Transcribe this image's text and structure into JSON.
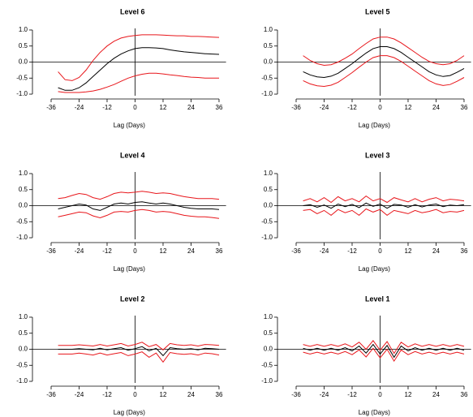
{
  "chart_data": [
    {
      "type": "line",
      "title": "Level 6",
      "xlabel": "Lag (Days)",
      "x": [
        -33,
        -30,
        -27,
        -24,
        -21,
        -18,
        -15,
        -12,
        -9,
        -6,
        -3,
        0,
        3,
        6,
        9,
        12,
        15,
        18,
        21,
        24,
        27,
        30,
        33,
        36
      ],
      "xlim": [
        -44,
        39
      ],
      "xticks": [
        -36,
        -24,
        -12,
        0,
        12,
        24,
        36
      ],
      "ylim": [
        -1.05,
        1.05
      ],
      "yticks": [
        {
          "value": -1,
          "label": "-1.0"
        },
        -0.5,
        {
          "value": 0,
          "label": "0.0"
        },
        0.5,
        {
          "value": 1,
          "label": "1.0"
        }
      ],
      "series": [
        {
          "color": "#000000",
          "values": [
            -0.8,
            -0.88,
            -0.88,
            -0.8,
            -0.65,
            -0.45,
            -0.25,
            -0.05,
            0.12,
            0.25,
            0.35,
            0.42,
            0.45,
            0.45,
            0.44,
            0.42,
            0.38,
            0.35,
            0.32,
            0.3,
            0.28,
            0.26,
            0.25,
            0.24
          ]
        },
        {
          "color": "#e8161b",
          "values": [
            -0.3,
            -0.55,
            -0.58,
            -0.48,
            -0.25,
            0.05,
            0.3,
            0.5,
            0.65,
            0.75,
            0.8,
            0.83,
            0.85,
            0.85,
            0.85,
            0.84,
            0.83,
            0.82,
            0.82,
            0.8,
            0.8,
            0.79,
            0.78,
            0.77
          ]
        },
        {
          "color": "#e8161b",
          "values": [
            -0.92,
            -0.95,
            -0.95,
            -0.95,
            -0.93,
            -0.9,
            -0.85,
            -0.78,
            -0.7,
            -0.6,
            -0.5,
            -0.43,
            -0.38,
            -0.35,
            -0.35,
            -0.37,
            -0.4,
            -0.42,
            -0.45,
            -0.47,
            -0.48,
            -0.5,
            -0.5,
            -0.5
          ]
        }
      ]
    },
    {
      "type": "line",
      "title": "Level 5",
      "xlabel": "Lag (Days)",
      "x": [
        -33,
        -30,
        -27,
        -24,
        -21,
        -18,
        -15,
        -12,
        -9,
        -6,
        -3,
        0,
        3,
        6,
        9,
        12,
        15,
        18,
        21,
        24,
        27,
        30,
        33,
        36
      ],
      "xlim": [
        -44,
        39
      ],
      "xticks": [
        -36,
        -24,
        -12,
        0,
        12,
        24,
        36
      ],
      "ylim": [
        -1.05,
        1.05
      ],
      "yticks": [
        {
          "value": -1,
          "label": "-1.0"
        },
        -0.5,
        {
          "value": 0,
          "label": "0.0"
        },
        0.5,
        {
          "value": 1,
          "label": "1.0"
        }
      ],
      "series": [
        {
          "color": "#000000",
          "values": [
            -0.3,
            -0.4,
            -0.46,
            -0.48,
            -0.44,
            -0.35,
            -0.2,
            -0.05,
            0.12,
            0.28,
            0.42,
            0.48,
            0.48,
            0.42,
            0.3,
            0.15,
            0,
            -0.15,
            -0.3,
            -0.4,
            -0.45,
            -0.42,
            -0.32,
            -0.2
          ]
        },
        {
          "color": "#e8161b",
          "values": [
            0.2,
            0.05,
            -0.05,
            -0.1,
            -0.08,
            0,
            0.12,
            0.25,
            0.42,
            0.58,
            0.72,
            0.78,
            0.78,
            0.72,
            0.6,
            0.45,
            0.3,
            0.15,
            0.02,
            -0.05,
            -0.08,
            -0.05,
            0.05,
            0.2
          ]
        },
        {
          "color": "#e8161b",
          "values": [
            -0.58,
            -0.68,
            -0.74,
            -0.76,
            -0.72,
            -0.63,
            -0.48,
            -0.33,
            -0.16,
            0,
            0.14,
            0.2,
            0.2,
            0.14,
            0.02,
            -0.13,
            -0.28,
            -0.43,
            -0.58,
            -0.68,
            -0.73,
            -0.7,
            -0.6,
            -0.48
          ]
        }
      ]
    },
    {
      "type": "line",
      "title": "Level 4",
      "xlabel": "Lag (Days)",
      "x": [
        -33,
        -30,
        -27,
        -24,
        -21,
        -18,
        -15,
        -12,
        -9,
        -6,
        -3,
        0,
        3,
        6,
        9,
        12,
        15,
        18,
        21,
        24,
        27,
        30,
        33,
        36
      ],
      "xlim": [
        -44,
        39
      ],
      "xticks": [
        -36,
        -24,
        -12,
        0,
        12,
        24,
        36
      ],
      "ylim": [
        -1.05,
        1.05
      ],
      "yticks": [
        {
          "value": -1,
          "label": "-1.0"
        },
        -0.5,
        {
          "value": 0,
          "label": "0.0"
        },
        0.5,
        {
          "value": 1,
          "label": "1.0"
        }
      ],
      "series": [
        {
          "color": "#000000",
          "values": [
            -0.1,
            -0.05,
            0,
            0.05,
            0.02,
            -0.1,
            -0.15,
            -0.05,
            0.05,
            0.08,
            0.05,
            0.1,
            0.12,
            0.08,
            0.05,
            0.08,
            0.05,
            0,
            -0.05,
            -0.08,
            -0.1,
            -0.1,
            -0.1,
            -0.12
          ]
        },
        {
          "color": "#e8161b",
          "values": [
            0.22,
            0.25,
            0.32,
            0.38,
            0.35,
            0.25,
            0.2,
            0.28,
            0.38,
            0.42,
            0.4,
            0.42,
            0.45,
            0.42,
            0.38,
            0.4,
            0.38,
            0.33,
            0.28,
            0.25,
            0.22,
            0.22,
            0.22,
            0.2
          ]
        },
        {
          "color": "#e8161b",
          "values": [
            -0.35,
            -0.3,
            -0.25,
            -0.2,
            -0.22,
            -0.32,
            -0.38,
            -0.3,
            -0.2,
            -0.18,
            -0.2,
            -0.15,
            -0.12,
            -0.15,
            -0.2,
            -0.18,
            -0.2,
            -0.25,
            -0.3,
            -0.33,
            -0.35,
            -0.35,
            -0.37,
            -0.4
          ]
        }
      ]
    },
    {
      "type": "line",
      "title": "Level 3",
      "xlabel": "Lag (Days)",
      "x": [
        -33,
        -30,
        -27,
        -24,
        -21,
        -18,
        -15,
        -12,
        -9,
        -6,
        -3,
        0,
        3,
        6,
        9,
        12,
        15,
        18,
        21,
        24,
        27,
        30,
        33,
        36
      ],
      "xlim": [
        -44,
        39
      ],
      "xticks": [
        -36,
        -24,
        -12,
        0,
        12,
        24,
        36
      ],
      "ylim": [
        -1.05,
        1.05
      ],
      "yticks": [
        {
          "value": -1,
          "label": "-1.0"
        },
        -0.5,
        {
          "value": 0,
          "label": "0.0"
        },
        0.5,
        {
          "value": 1,
          "label": "1.0"
        }
      ],
      "series": [
        {
          "color": "#000000",
          "values": [
            0,
            0.03,
            -0.05,
            0.02,
            -0.08,
            0.05,
            -0.03,
            0.04,
            -0.06,
            0.08,
            -0.02,
            0.05,
            -0.08,
            0.04,
            0.02,
            -0.05,
            0.03,
            -0.04,
            0.02,
            0.05,
            -0.03,
            0.02,
            0,
            0.03
          ]
        },
        {
          "color": "#e8161b",
          "values": [
            0.15,
            0.22,
            0.12,
            0.25,
            0.1,
            0.28,
            0.15,
            0.22,
            0.12,
            0.3,
            0.15,
            0.22,
            0.1,
            0.25,
            0.18,
            0.12,
            0.22,
            0.12,
            0.2,
            0.25,
            0.15,
            0.2,
            0.18,
            0.15
          ]
        },
        {
          "color": "#e8161b",
          "values": [
            -0.15,
            -0.12,
            -0.25,
            -0.15,
            -0.3,
            -0.12,
            -0.22,
            -0.15,
            -0.3,
            -0.1,
            -0.2,
            -0.12,
            -0.3,
            -0.15,
            -0.2,
            -0.25,
            -0.15,
            -0.22,
            -0.18,
            -0.12,
            -0.22,
            -0.18,
            -0.2,
            -0.15
          ]
        }
      ]
    },
    {
      "type": "line",
      "title": "Level 2",
      "xlabel": "Lag (Days)",
      "x": [
        -33,
        -30,
        -27,
        -24,
        -21,
        -18,
        -15,
        -12,
        -9,
        -6,
        -3,
        0,
        3,
        6,
        9,
        12,
        15,
        18,
        21,
        24,
        27,
        30,
        33,
        36
      ],
      "xlim": [
        -44,
        39
      ],
      "xticks": [
        -36,
        -24,
        -12,
        0,
        12,
        24,
        36
      ],
      "ylim": [
        -1.05,
        1.05
      ],
      "yticks": [
        {
          "value": -1,
          "label": "-1.0"
        },
        -0.5,
        {
          "value": 0,
          "label": "0.0"
        },
        0.5,
        {
          "value": 1,
          "label": "1.0"
        }
      ],
      "series": [
        {
          "color": "#000000",
          "values": [
            0,
            0,
            0,
            0.02,
            0,
            -0.02,
            0.03,
            -0.02,
            0.02,
            0.05,
            -0.03,
            0.02,
            0.08,
            -0.05,
            0.03,
            -0.2,
            0.05,
            0.02,
            0,
            0.02,
            -0.02,
            0.03,
            0.02,
            0
          ]
        },
        {
          "color": "#e8161b",
          "values": [
            0.12,
            0.12,
            0.12,
            0.14,
            0.12,
            0.1,
            0.15,
            0.1,
            0.14,
            0.18,
            0.1,
            0.15,
            0.22,
            0.08,
            0.15,
            -0.02,
            0.18,
            0.14,
            0.12,
            0.14,
            0.1,
            0.15,
            0.14,
            0.12
          ]
        },
        {
          "color": "#e8161b",
          "values": [
            -0.15,
            -0.15,
            -0.15,
            -0.12,
            -0.15,
            -0.18,
            -0.12,
            -0.18,
            -0.14,
            -0.1,
            -0.2,
            -0.15,
            -0.08,
            -0.25,
            -0.12,
            -0.4,
            -0.1,
            -0.14,
            -0.16,
            -0.14,
            -0.18,
            -0.12,
            -0.14,
            -0.18
          ]
        }
      ]
    },
    {
      "type": "line",
      "title": "Level 1",
      "xlabel": "Lag (Days)",
      "x": [
        -33,
        -30,
        -27,
        -24,
        -21,
        -18,
        -15,
        -12,
        -9,
        -6,
        -3,
        0,
        3,
        6,
        9,
        12,
        15,
        18,
        21,
        24,
        27,
        30,
        33,
        36
      ],
      "xlim": [
        -44,
        39
      ],
      "xticks": [
        -36,
        -24,
        -12,
        0,
        12,
        24,
        36
      ],
      "ylim": [
        -1.05,
        1.05
      ],
      "yticks": [
        {
          "value": -1,
          "label": "-1.0"
        },
        -0.5,
        {
          "value": 0,
          "label": "0.0"
        },
        0.5,
        {
          "value": 1,
          "label": "1.0"
        }
      ],
      "series": [
        {
          "color": "#000000",
          "values": [
            0.03,
            -0.03,
            0.03,
            -0.03,
            0.03,
            -0.03,
            0.05,
            -0.05,
            0.1,
            -0.12,
            0.15,
            -0.15,
            0.12,
            -0.25,
            0.1,
            -0.05,
            0.05,
            -0.03,
            0.03,
            -0.03,
            0.03,
            -0.03,
            0.03,
            -0.03
          ]
        },
        {
          "color": "#e8161b",
          "values": [
            0.15,
            0.09,
            0.15,
            0.09,
            0.15,
            0.09,
            0.17,
            0.07,
            0.22,
            0,
            0.27,
            -0.03,
            0.24,
            -0.13,
            0.22,
            0.07,
            0.17,
            0.09,
            0.15,
            0.09,
            0.15,
            0.09,
            0.15,
            0.09
          ]
        },
        {
          "color": "#e8161b",
          "values": [
            -0.09,
            -0.15,
            -0.09,
            -0.15,
            -0.09,
            -0.15,
            -0.07,
            -0.17,
            -0.02,
            -0.24,
            0.03,
            -0.27,
            0,
            -0.37,
            -0.02,
            -0.17,
            -0.07,
            -0.15,
            -0.09,
            -0.15,
            -0.09,
            -0.15,
            -0.09,
            -0.15
          ]
        }
      ]
    }
  ]
}
